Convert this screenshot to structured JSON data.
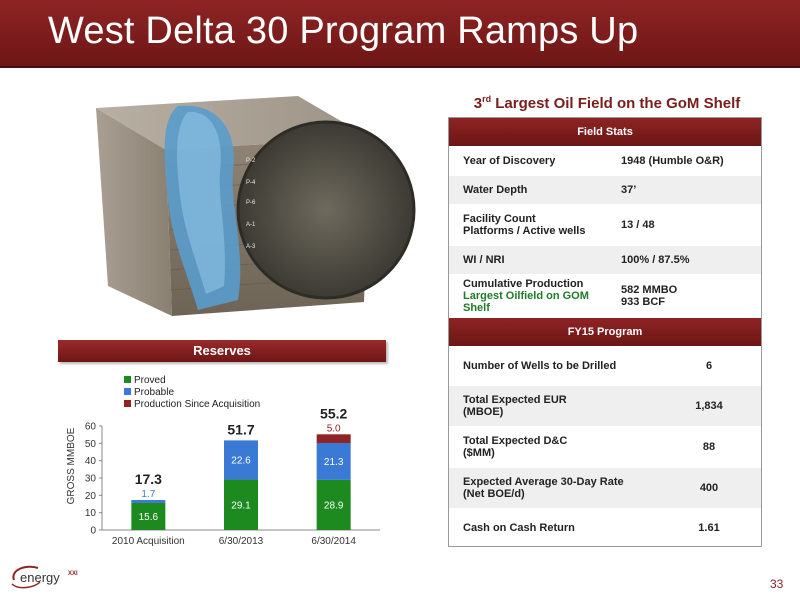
{
  "title": "West Delta 30 Program Ramps Up",
  "subtitle_main": "3",
  "subtitle_sup": "rd",
  "subtitle_rest": " Largest Oil Field on the GoM Shelf",
  "illustration": {
    "labels": [
      "P-2",
      "P-4",
      "P-6",
      "A-1",
      "A-3"
    ]
  },
  "field_stats": {
    "header": "Field Stats",
    "rows": [
      {
        "label": "Year of Discovery",
        "value": "1948  (Humble O&R)"
      },
      {
        "label": "Water Depth",
        "value": "37’"
      },
      {
        "label": "Facility Count",
        "label2": "Platforms / Active wells",
        "value": "13  /  48"
      },
      {
        "label": "WI / NRI",
        "value": "100% / 87.5%"
      },
      {
        "label": "Cumulative Production",
        "label2": "Largest Oilfield on GOM",
        "label3": "Shelf",
        "value": "582 MMBO",
        "value2": "933 BCF"
      }
    ]
  },
  "fy15": {
    "header": "FY15 Program",
    "rows": [
      {
        "label": "Number of Wells to be Drilled",
        "value": "6"
      },
      {
        "label": "Total Expected EUR",
        "label2": "(MBOE)",
        "value": "1,834"
      },
      {
        "label": "Total Expected D&C",
        "label2": "($MM)",
        "value": "88"
      },
      {
        "label": "Expected Average 30-Day Rate",
        "label2": "(Net BOE/d)",
        "value": "400"
      },
      {
        "label": "Cash on Cash Return",
        "value": "1.61"
      }
    ]
  },
  "reserves_banner": "Reserves",
  "chart_data": {
    "type": "bar",
    "stacked": true,
    "ylabel": "GROSS MMBOE",
    "ylim": [
      0,
      60
    ],
    "yticks": [
      "0",
      "10",
      "20",
      "30",
      "40",
      "50",
      "60"
    ],
    "categories": [
      "2010 Acquisition",
      "6/30/2013",
      "6/30/2014"
    ],
    "series": [
      {
        "name": "Proved",
        "color": "#1d8a1f",
        "values": [
          15.6,
          29.1,
          28.9
        ],
        "labels": [
          "15.6",
          "29.1",
          "28.9"
        ]
      },
      {
        "name": "Probable",
        "color": "#3a7ad4",
        "values": [
          1.7,
          22.6,
          21.3
        ],
        "labels": [
          "1.7",
          "22.6",
          "21.3"
        ]
      },
      {
        "name": "Production Since Acquisition",
        "color": "#8e2424",
        "values": [
          0,
          0,
          5.0
        ],
        "labels": [
          "",
          "",
          "5.0"
        ]
      }
    ],
    "totals": [
      "17.3",
      "51.7",
      "55.2"
    ],
    "legend": "top-left"
  },
  "logo_text": "energy",
  "logo_sup": "XXI",
  "page_number": "33"
}
